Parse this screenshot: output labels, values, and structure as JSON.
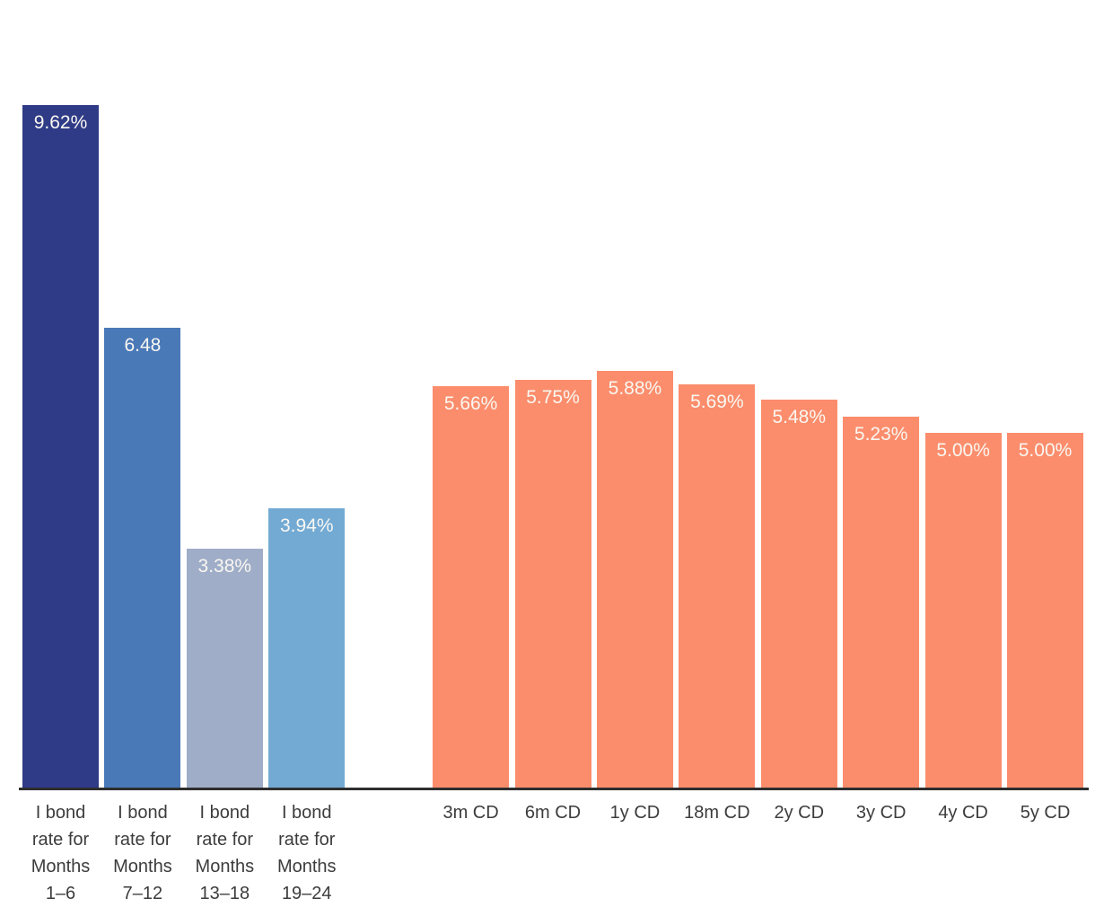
{
  "chart_data": {
    "type": "bar",
    "title": "",
    "xlabel": "",
    "ylabel": "",
    "ylim": [
      0,
      11.1
    ],
    "grid": false,
    "legend": false,
    "axis_color": "#2e2e2e",
    "category_label_color": "#3c3c3c",
    "bar_value_label_color": "#faf7f1",
    "categories": [
      "I bond rate for Months 1–6",
      "I bond rate for Months 7–12",
      "I bond rate for Months 13–18",
      "I bond rate for Months 19–24",
      "3m CD",
      "6m CD",
      "1y CD",
      "18m CD",
      "2y CD",
      "3y CD",
      "4y CD",
      "5y CD"
    ],
    "values": [
      9.62,
      6.48,
      3.38,
      3.94,
      5.66,
      5.75,
      5.88,
      5.69,
      5.48,
      5.23,
      5.0,
      5.0
    ],
    "bars": [
      {
        "category_display": "I bond\nrate for\nMonths\n1–6",
        "value": 9.62,
        "label": "9.62%",
        "color": "#2f3b86",
        "slot": 0
      },
      {
        "category_display": "I bond\nrate for\nMonths\n7–12",
        "value": 6.48,
        "label": "6.48",
        "color": "#4a79b8",
        "slot": 1
      },
      {
        "category_display": "I bond\nrate for\nMonths\n13–18",
        "value": 3.38,
        "label": "3.38%",
        "color": "#9fadc8",
        "slot": 2
      },
      {
        "category_display": "I bond\nrate for\nMonths\n19–24",
        "value": 3.94,
        "label": "3.94%",
        "color": "#72aad4",
        "slot": 3
      },
      {
        "category_display": "3m CD",
        "value": 5.66,
        "label": "5.66%",
        "color": "#fb8d6c",
        "slot": 5
      },
      {
        "category_display": "6m CD",
        "value": 5.75,
        "label": "5.75%",
        "color": "#fb8d6c",
        "slot": 6
      },
      {
        "category_display": "1y CD",
        "value": 5.88,
        "label": "5.88%",
        "color": "#fb8d6c",
        "slot": 7
      },
      {
        "category_display": "18m CD",
        "value": 5.69,
        "label": "5.69%",
        "color": "#fb8d6c",
        "slot": 8
      },
      {
        "category_display": "2y CD",
        "value": 5.48,
        "label": "5.48%",
        "color": "#fb8d6c",
        "slot": 9
      },
      {
        "category_display": "3y CD",
        "value": 5.23,
        "label": "5.23%",
        "color": "#fb8d6c",
        "slot": 10
      },
      {
        "category_display": "4y CD",
        "value": 5.0,
        "label": "5.00%",
        "color": "#fb8d6c",
        "slot": 11
      },
      {
        "category_display": "5y CD",
        "value": 5.0,
        "label": "5.00%",
        "color": "#fb8d6c",
        "slot": 12
      }
    ]
  }
}
